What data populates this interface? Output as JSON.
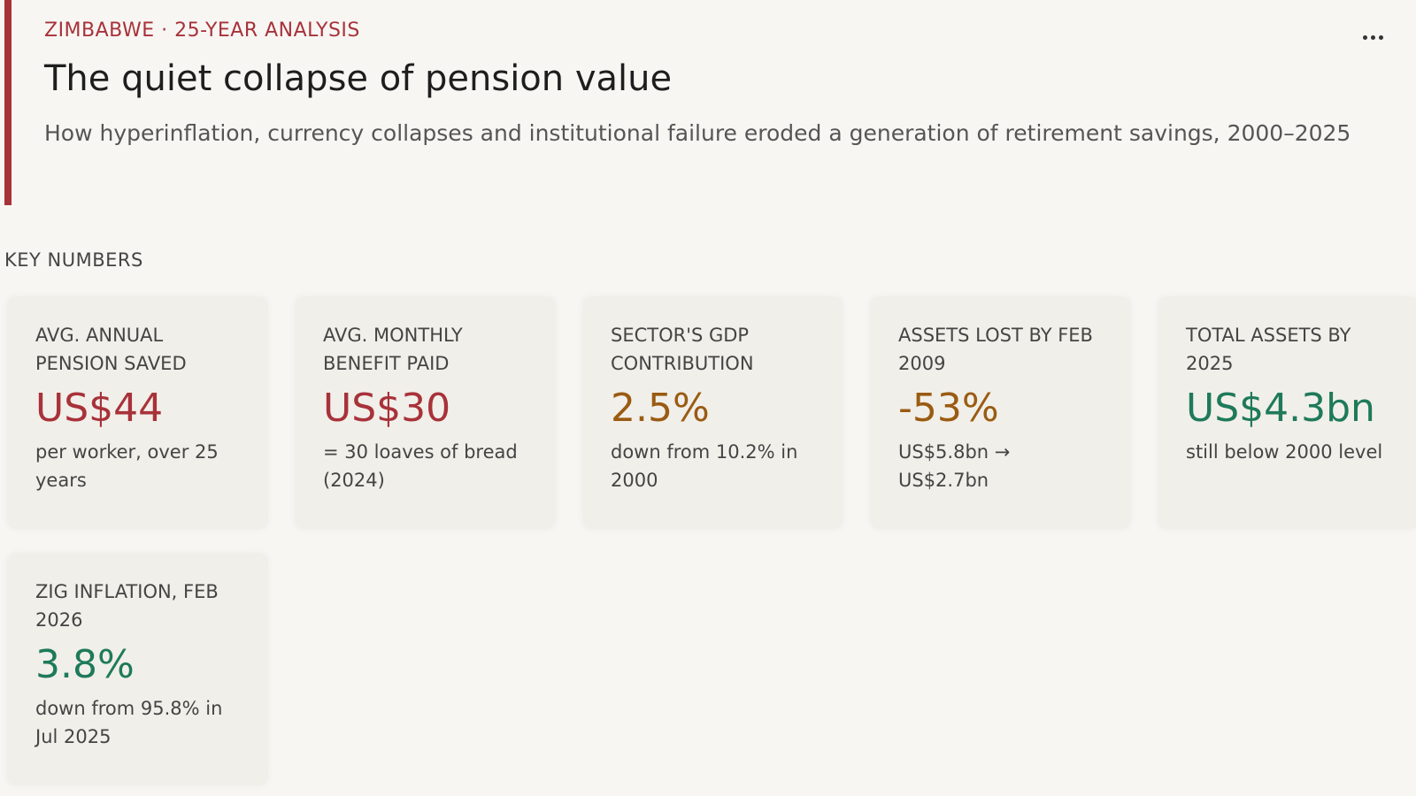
{
  "header": {
    "kicker": "ZIMBABWE · 25-YEAR ANALYSIS",
    "title": "The quiet collapse of pension value",
    "subtitle": "How hyperinflation, currency collapses and institutional failure eroded a generation of retirement savings, 2000–2025"
  },
  "section_label": "KEY NUMBERS",
  "cards": [
    {
      "label": "AVG. ANNUAL PENSION SAVED",
      "value": "US$44",
      "note": "per worker, over 25 years",
      "tone": "#a8323a"
    },
    {
      "label": "AVG. MONTHLY BENEFIT PAID",
      "value": "US$30",
      "note": "= 30 loaves of bread (2024)",
      "tone": "#a8323a"
    },
    {
      "label": "SECTOR'S GDP CONTRIBUTION",
      "value": "2.5%",
      "note": "down from 10.2% in 2000",
      "tone": "#9a5b12"
    },
    {
      "label": "ASSETS LOST BY FEB 2009",
      "value": "-53%",
      "note": "US$5.8bn → US$2.7bn",
      "tone": "#9a5b12"
    },
    {
      "label": "TOTAL ASSETS BY 2025",
      "value": "US$4.3bn",
      "note": "still below 2000 level",
      "tone": "#1e7a5a"
    },
    {
      "label": "ZIG INFLATION, FEB 2026",
      "value": "3.8%",
      "note": "down from 95.8% in Jul 2025",
      "tone": "#1e7a5a"
    }
  ]
}
